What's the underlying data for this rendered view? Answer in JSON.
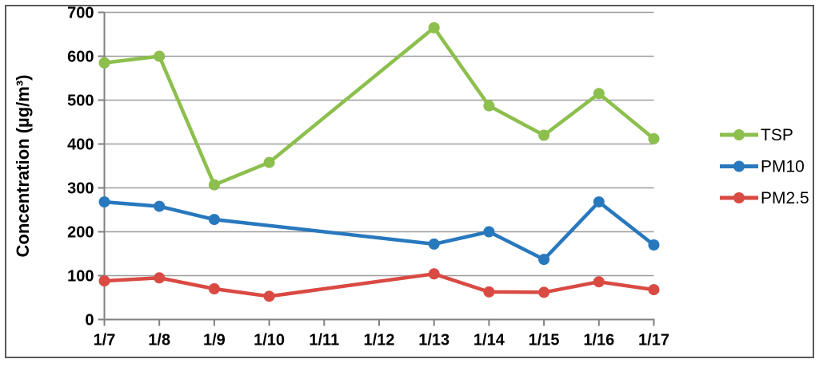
{
  "chart_data": {
    "type": "line",
    "title": "",
    "xlabel": "",
    "ylabel": "Concentration (µg/m³)",
    "categories": [
      "1/7",
      "1/8",
      "1/9",
      "1/10",
      "1/11",
      "1/12",
      "1/13",
      "1/14",
      "1/15",
      "1/16",
      "1/17"
    ],
    "series": [
      {
        "name": "TSP",
        "color": "#8CBF4D",
        "values": [
          585,
          600,
          307,
          358,
          null,
          null,
          665,
          487,
          420,
          515,
          412
        ]
      },
      {
        "name": "PM10",
        "color": "#2878BE",
        "values": [
          268,
          258,
          228,
          null,
          null,
          null,
          172,
          200,
          137,
          268,
          170
        ]
      },
      {
        "name": "PM2.5",
        "color": "#D94A43",
        "values": [
          88,
          95,
          70,
          53,
          null,
          null,
          104,
          63,
          62,
          86,
          68
        ]
      }
    ],
    "ylim": [
      0,
      700
    ],
    "ytick_step": 100,
    "grid": "horizontal",
    "legend_position": "right",
    "notes": "markers only at dates with data; lines connect straight across missing 1/11 and 1/12"
  },
  "styles": {
    "background": "#FFFFFF",
    "frame_border_color": "#595959",
    "grid_color": "#9C9C9C",
    "axis_color": "#808080",
    "tick_label_color": "#000000",
    "legend_text_color": "#000000"
  }
}
